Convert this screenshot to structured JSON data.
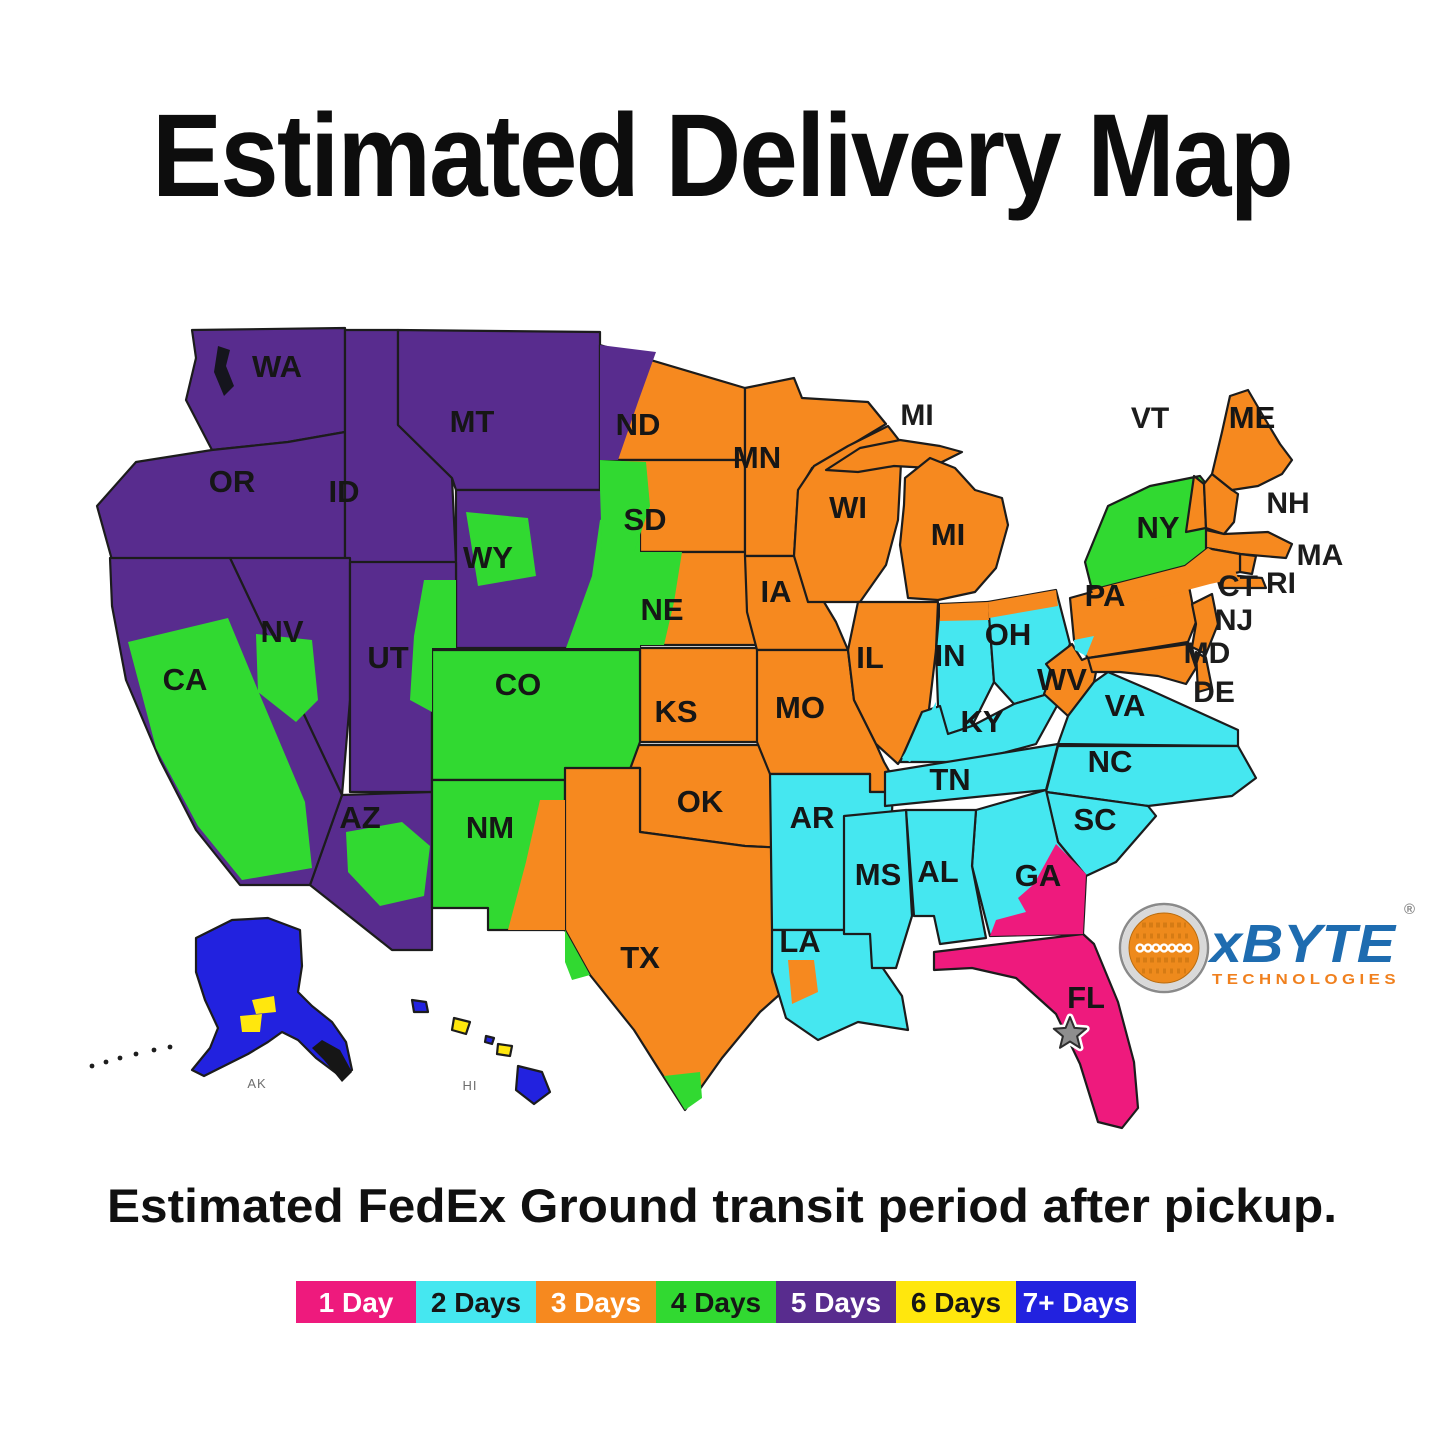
{
  "title": "Estimated Delivery Map",
  "subtitle": "Estimated FedEx Ground transit period after pickup.",
  "legend": {
    "items": [
      {
        "days": 1,
        "label": "1 Day",
        "color": "#ee1a7d",
        "text_color": "#ffffff"
      },
      {
        "days": 2,
        "label": "2 Days",
        "color": "#45e7f0",
        "text_color": "#161616"
      },
      {
        "days": 3,
        "label": "3 Days",
        "color": "#f6891f",
        "text_color": "#ffffff"
      },
      {
        "days": 4,
        "label": "4 Days",
        "color": "#31d931",
        "text_color": "#161616"
      },
      {
        "days": 5,
        "label": "5 Days",
        "color": "#582c8e",
        "text_color": "#ffffff"
      },
      {
        "days": 6,
        "label": "6 Days",
        "color": "#ffe70d",
        "text_color": "#161616"
      },
      {
        "days": 7,
        "label": "7+ Days",
        "color": "#2222df",
        "text_color": "#ffffff"
      }
    ]
  },
  "logo": {
    "brand": "xBYTE",
    "sub": "TECHNOLOGIES",
    "registered": "®",
    "brand_color": "#1e6cb0",
    "sub_color": "#f0801e",
    "badge_color": "#ee8a1c"
  },
  "map": {
    "origin_marker": {
      "shape": "star",
      "state": "FL",
      "color": "#8e8e8e"
    },
    "regions": [
      {
        "id": "WA",
        "days": 5
      },
      {
        "id": "OR",
        "days": 5
      },
      {
        "id": "ID",
        "days": 5
      },
      {
        "id": "MT",
        "days": 5
      },
      {
        "id": "WY",
        "days": 5
      },
      {
        "id": "ND",
        "days": 3
      },
      {
        "id": "SD",
        "days": 3
      },
      {
        "id": "NE",
        "days": 3
      },
      {
        "id": "KS",
        "days": 3
      },
      {
        "id": "OK",
        "days": 3
      },
      {
        "id": "NV",
        "days": 5
      },
      {
        "id": "UT",
        "days": 5
      },
      {
        "id": "CO",
        "days": 4
      },
      {
        "id": "AZ",
        "days": 5
      },
      {
        "id": "NM",
        "days": 4
      },
      {
        "id": "CA",
        "days": 5
      },
      {
        "id": "TX",
        "days": 3
      },
      {
        "id": "MN",
        "days": 3
      },
      {
        "id": "IA",
        "days": 3
      },
      {
        "id": "MO",
        "days": 3
      },
      {
        "id": "AR",
        "days": 2
      },
      {
        "id": "LA",
        "days": 2
      },
      {
        "id": "WI",
        "days": 3
      },
      {
        "id": "MI_UP",
        "days": 3
      },
      {
        "id": "MI",
        "days": 3
      },
      {
        "id": "IL",
        "days": 3
      },
      {
        "id": "IN",
        "days": 2
      },
      {
        "id": "OH",
        "days": 2
      },
      {
        "id": "KY",
        "days": 2
      },
      {
        "id": "TN",
        "days": 2
      },
      {
        "id": "WV",
        "days": 3
      },
      {
        "id": "VA",
        "days": 2
      },
      {
        "id": "NC",
        "days": 2
      },
      {
        "id": "SC",
        "days": 2
      },
      {
        "id": "GA",
        "days": 2
      },
      {
        "id": "AL",
        "days": 2
      },
      {
        "id": "MS",
        "days": 2
      },
      {
        "id": "FL",
        "days": 1
      },
      {
        "id": "PA",
        "days": 3
      },
      {
        "id": "NY",
        "days": 4
      },
      {
        "id": "LI",
        "days": 3
      },
      {
        "id": "VT",
        "days": 3
      },
      {
        "id": "NH",
        "days": 3
      },
      {
        "id": "ME",
        "days": 3
      },
      {
        "id": "MA",
        "days": 3
      },
      {
        "id": "RI",
        "days": 3
      },
      {
        "id": "CT",
        "days": 3
      },
      {
        "id": "NJ",
        "days": 3
      },
      {
        "id": "MD",
        "days": 3
      },
      {
        "id": "DE",
        "days": 3
      },
      {
        "id": "AK",
        "days": 7
      },
      {
        "id": "HI1",
        "days": 7
      },
      {
        "id": "HI2",
        "days": 6
      },
      {
        "id": "HI3",
        "days": 7
      },
      {
        "id": "HI4",
        "days": 6
      },
      {
        "id": "HI5",
        "days": 7
      }
    ],
    "subregions": [
      {
        "id": "CA_p",
        "state": "CA",
        "days": 4
      },
      {
        "id": "NV_p",
        "state": "NV",
        "days": 4
      },
      {
        "id": "UT_p",
        "state": "UT",
        "days": 4
      },
      {
        "id": "AZ_p",
        "state": "AZ",
        "days": 4
      },
      {
        "id": "WY_p1",
        "state": "WY",
        "days": 4
      },
      {
        "id": "WY_p2",
        "state": "WY",
        "days": 4
      },
      {
        "id": "ND_p",
        "state": "ND",
        "days": 5
      },
      {
        "id": "SD_p",
        "state": "SD",
        "days": 4
      },
      {
        "id": "NE_p",
        "state": "NE",
        "days": 4
      },
      {
        "id": "NM_p",
        "state": "NM",
        "days": 3
      },
      {
        "id": "TX_p1",
        "state": "TX",
        "days": 4
      },
      {
        "id": "TX_p2",
        "state": "TX",
        "days": 4
      },
      {
        "id": "NY_p",
        "state": "NY",
        "days": 3
      },
      {
        "id": "IN_p",
        "state": "IN",
        "days": 3
      },
      {
        "id": "OH_p",
        "state": "OH",
        "days": 3
      },
      {
        "id": "IL_p",
        "state": "IL",
        "days": 2
      },
      {
        "id": "PA_p",
        "state": "PA",
        "days": 2
      },
      {
        "id": "LA_p",
        "state": "LA",
        "days": 3
      },
      {
        "id": "GA_p",
        "state": "GA",
        "days": 1
      },
      {
        "id": "AK_p1",
        "state": "AK",
        "days": 6
      },
      {
        "id": "AK_p2",
        "state": "AK",
        "days": 6
      }
    ],
    "labels": [
      {
        "id": "WA",
        "text": "WA",
        "style": "map"
      },
      {
        "id": "MT",
        "text": "MT",
        "style": "map"
      },
      {
        "id": "OR",
        "text": "OR",
        "style": "map"
      },
      {
        "id": "ID",
        "text": "ID",
        "style": "map"
      },
      {
        "id": "WY",
        "text": "WY",
        "style": "map"
      },
      {
        "id": "NV",
        "text": "NV",
        "style": "map"
      },
      {
        "id": "UT",
        "text": "UT",
        "style": "map"
      },
      {
        "id": "CA",
        "text": "CA",
        "style": "map"
      },
      {
        "id": "AZ",
        "text": "AZ",
        "style": "map"
      },
      {
        "id": "NM",
        "text": "NM",
        "style": "map"
      },
      {
        "id": "CO",
        "text": "CO",
        "style": "map"
      },
      {
        "id": "ND",
        "text": "ND",
        "style": "map"
      },
      {
        "id": "SD",
        "text": "SD",
        "style": "map"
      },
      {
        "id": "NE",
        "text": "NE",
        "style": "map"
      },
      {
        "id": "KS",
        "text": "KS",
        "style": "map"
      },
      {
        "id": "OK",
        "text": "OK",
        "style": "map"
      },
      {
        "id": "TX",
        "text": "TX",
        "style": "map"
      },
      {
        "id": "MN",
        "text": "MN",
        "style": "map"
      },
      {
        "id": "IA",
        "text": "IA",
        "style": "map"
      },
      {
        "id": "MO",
        "text": "MO",
        "style": "map"
      },
      {
        "id": "AR",
        "text": "AR",
        "style": "map"
      },
      {
        "id": "LA",
        "text": "LA",
        "style": "map"
      },
      {
        "id": "MS",
        "text": "MS",
        "style": "map"
      },
      {
        "id": "AL",
        "text": "AL",
        "style": "map"
      },
      {
        "id": "WI",
        "text": "WI",
        "style": "map"
      },
      {
        "id": "MI",
        "text": "MI",
        "style": "map"
      },
      {
        "id": "IL",
        "text": "IL",
        "style": "map"
      },
      {
        "id": "IN",
        "text": "IN",
        "style": "map"
      },
      {
        "id": "OH",
        "text": "OH",
        "style": "map"
      },
      {
        "id": "KY",
        "text": "KY",
        "style": "map"
      },
      {
        "id": "TN",
        "text": "TN",
        "style": "map"
      },
      {
        "id": "WV",
        "text": "WV",
        "style": "map"
      },
      {
        "id": "VA",
        "text": "VA",
        "style": "map"
      },
      {
        "id": "NC",
        "text": "NC",
        "style": "map"
      },
      {
        "id": "SC",
        "text": "SC",
        "style": "map"
      },
      {
        "id": "GA",
        "text": "GA",
        "style": "map"
      },
      {
        "id": "FL",
        "text": "FL",
        "style": "map"
      },
      {
        "id": "NY",
        "text": "NY",
        "style": "map"
      },
      {
        "id": "PA",
        "text": "PA",
        "style": "map"
      },
      {
        "id": "ME",
        "text": "ME",
        "style": "map"
      },
      {
        "id": "MI2",
        "text": "MI",
        "style": "outside"
      },
      {
        "id": "VT",
        "text": "VT",
        "style": "outside"
      },
      {
        "id": "NH",
        "text": "NH",
        "style": "outside"
      },
      {
        "id": "MA",
        "text": "MA",
        "style": "outside"
      },
      {
        "id": "CT",
        "text": "CT",
        "style": "outside"
      },
      {
        "id": "RI",
        "text": "RI",
        "style": "outside"
      },
      {
        "id": "NJ",
        "text": "NJ",
        "style": "outside"
      },
      {
        "id": "MD",
        "text": "MD",
        "style": "outside"
      },
      {
        "id": "DE",
        "text": "DE",
        "style": "outside"
      },
      {
        "id": "AKL",
        "text": "AK",
        "style": "tiny"
      },
      {
        "id": "HIL",
        "text": "HI",
        "style": "tiny"
      }
    ]
  }
}
